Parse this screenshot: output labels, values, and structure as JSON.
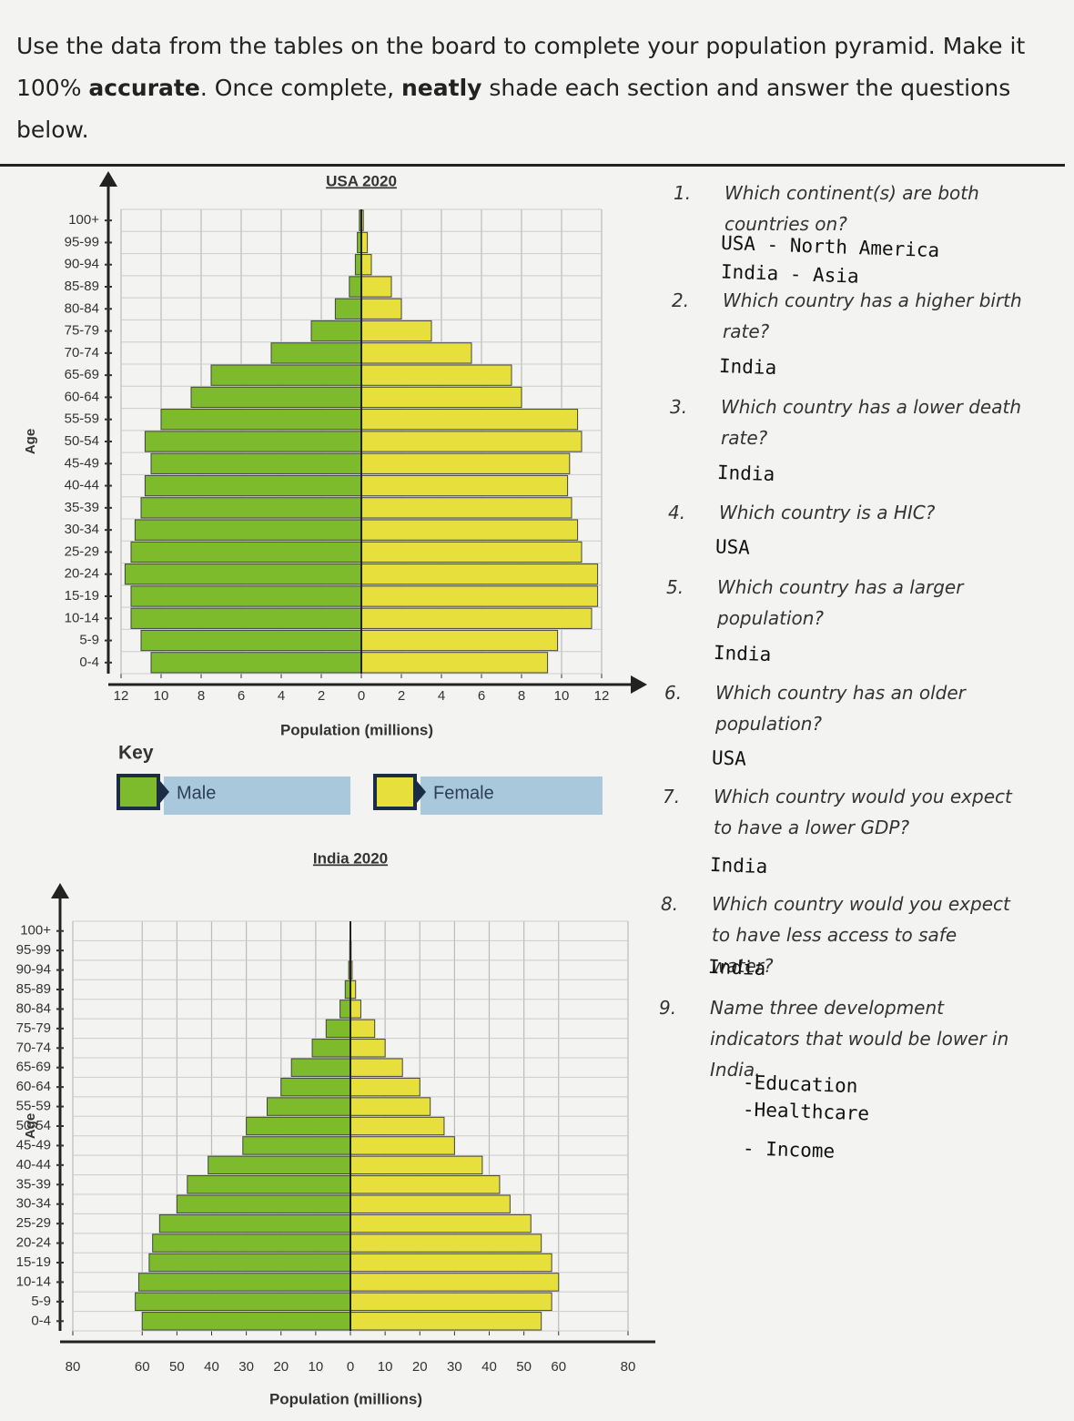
{
  "instructions": [
    "Use the data from the tables on the board to complete your population pyramid. Make it 100% ",
    "accurate",
    ". Once complete, ",
    "neatly",
    " shade each section and answer the questions below."
  ],
  "key_title": "Key",
  "chart_data": [
    {
      "type": "pyramid",
      "title": "USA 2020",
      "xlabel": "Population (millions)",
      "ylabel": "Age",
      "categories": [
        "100+",
        "95-99",
        "90-94",
        "85-89",
        "80-84",
        "75-79",
        "70-74",
        "65-69",
        "60-64",
        "55-59",
        "50-54",
        "45-49",
        "40-44",
        "35-39",
        "30-34",
        "25-29",
        "20-24",
        "15-19",
        "10-14",
        "5-9",
        "0-4"
      ],
      "series": [
        {
          "name": "Male",
          "color": "#7dbb2c",
          "values": [
            0.1,
            0.2,
            0.3,
            0.6,
            1.3,
            2.5,
            4.5,
            7.5,
            8.5,
            10,
            10.8,
            10.5,
            10.8,
            11,
            11.3,
            11.5,
            11.8,
            11.5,
            11.5,
            11,
            10.5
          ]
        },
        {
          "name": "Female",
          "color": "#e6df3c",
          "values": [
            0.1,
            0.3,
            0.5,
            1.5,
            2,
            3.5,
            5.5,
            7.5,
            8,
            10.8,
            11,
            10.4,
            10.3,
            10.5,
            10.8,
            11,
            11.8,
            11.8,
            11.5,
            9.8,
            9.3
          ]
        }
      ],
      "xlim": [
        -12,
        12
      ],
      "xticks": [
        {
          "value": -12,
          "label": "12"
        },
        {
          "value": -10,
          "label": "10"
        },
        {
          "value": -8,
          "label": "8"
        },
        {
          "value": -6,
          "label": "6"
        },
        {
          "value": -4,
          "label": "4"
        },
        {
          "value": -2,
          "label": "2"
        },
        0,
        2,
        4,
        6,
        8,
        10,
        12
      ],
      "grid": true
    },
    {
      "type": "pyramid",
      "title": "India 2020",
      "xlabel": "Population (millions)",
      "ylabel": "Age",
      "categories": [
        "100+",
        "95-99",
        "90-94",
        "85-89",
        "80-84",
        "75-79",
        "70-74",
        "65-69",
        "60-64",
        "55-59",
        "50-54",
        "45-49",
        "40-44",
        "35-39",
        "30-34",
        "25-29",
        "20-24",
        "15-19",
        "10-14",
        "5-9",
        "0-4"
      ],
      "series": [
        {
          "name": "Male",
          "color": "#7dbb2c",
          "values": [
            0.1,
            0.2,
            0.5,
            1.5,
            3,
            7,
            11,
            17,
            20,
            24,
            30,
            31,
            41,
            47,
            50,
            55,
            57,
            58,
            61,
            62,
            60
          ]
        },
        {
          "name": "Female",
          "color": "#e6df3c",
          "values": [
            0.1,
            0.2,
            0.5,
            1.5,
            3,
            7,
            10,
            15,
            20,
            23,
            27,
            30,
            38,
            43,
            46,
            52,
            55,
            58,
            60,
            58,
            55
          ]
        }
      ],
      "xlim": [
        -80,
        80
      ],
      "xticks": [
        {
          "value": -80,
          "label": "80"
        },
        {
          "value": -60,
          "label": "60"
        },
        {
          "value": -50,
          "label": "50"
        },
        {
          "value": -40,
          "label": "40"
        },
        {
          "value": -30,
          "label": "30"
        },
        {
          "value": -20,
          "label": "20"
        },
        {
          "value": -10,
          "label": "10"
        },
        0,
        10,
        20,
        30,
        40,
        50,
        60,
        80
      ],
      "grid": true
    }
  ],
  "questions": [
    {
      "number": "1.",
      "text": "Which continent(s) are both countries on?",
      "answer": [
        "USA - North America",
        "India - Asia"
      ]
    },
    {
      "number": "2.",
      "text": "Which country has a higher birth rate?",
      "answer": [
        "India"
      ]
    },
    {
      "number": "3.",
      "text": "Which country has a lower death rate?",
      "answer": [
        "India"
      ]
    },
    {
      "number": "4.",
      "text": "Which country is a HIC?",
      "answer": [
        "USA"
      ]
    },
    {
      "number": "5.",
      "text": "Which country has a larger population?",
      "answer": [
        "India"
      ]
    },
    {
      "number": "6.",
      "text": "Which country has an older population?",
      "answer": [
        "USA"
      ]
    },
    {
      "number": "7.",
      "text": "Which country would you expect to have a lower GDP?",
      "answer": [
        "India"
      ]
    },
    {
      "number": "8.",
      "text": "Which country would you expect to have less access to safe water?",
      "answer": [
        "India"
      ]
    },
    {
      "number": "9.",
      "text": "Name three development indicators that would be lower in India.",
      "answer": [
        "-Education",
        "-Healthcare",
        "- Income"
      ]
    }
  ]
}
